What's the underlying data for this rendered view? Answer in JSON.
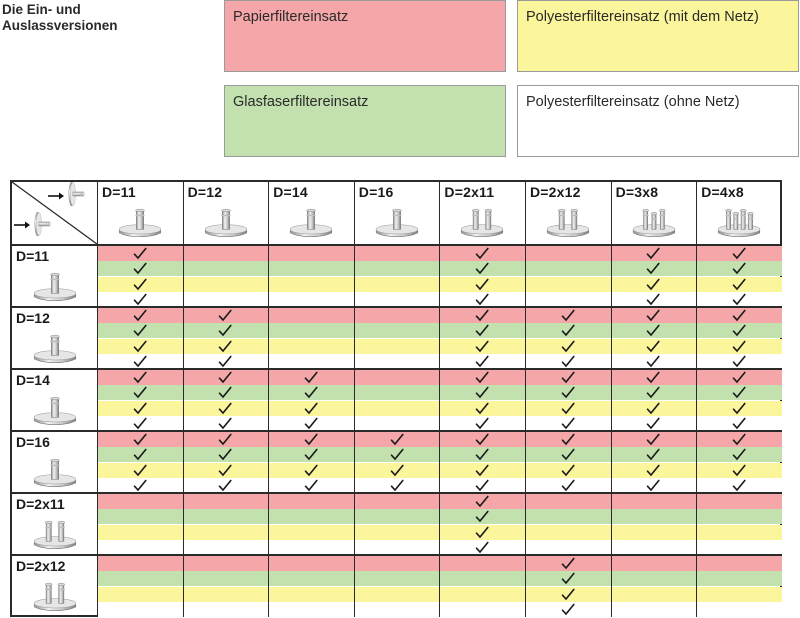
{
  "title_line1": "Die Ein- und",
  "title_line2": "Auslassversionen",
  "legend": {
    "paper": "Papierfiltereinsatz",
    "polyester_net": "Polyesterfiltereinsatz (mit dem Netz)",
    "glass": "Glasfaserfiltereinsatz",
    "polyester_nonet": "Polyesterfiltereinsatz (ohne Netz)"
  },
  "colors": {
    "paper": "#f4a6a8",
    "glass": "#c2e1ae",
    "polyester_net": "#fbf59c",
    "polyester_nonet": "#ffffff"
  },
  "columns": [
    "D=11",
    "D=12",
    "D=14",
    "D=16",
    "D=2x11",
    "D=2x12",
    "D=3x8",
    "D=4x8"
  ],
  "column_pins": [
    1,
    1,
    1,
    1,
    2,
    2,
    3,
    4
  ],
  "rows": [
    {
      "label": "D=11",
      "pins": 1,
      "checks": [
        [
          1,
          0,
          0,
          0,
          1,
          0,
          1,
          1
        ],
        [
          1,
          0,
          0,
          0,
          1,
          0,
          1,
          1
        ],
        [
          1,
          0,
          0,
          0,
          1,
          0,
          1,
          1
        ],
        [
          1,
          0,
          0,
          0,
          1,
          0,
          1,
          1
        ]
      ]
    },
    {
      "label": "D=12",
      "pins": 1,
      "checks": [
        [
          1,
          1,
          0,
          0,
          1,
          1,
          1,
          1
        ],
        [
          1,
          1,
          0,
          0,
          1,
          1,
          1,
          1
        ],
        [
          1,
          1,
          0,
          0,
          1,
          1,
          1,
          1
        ],
        [
          1,
          1,
          0,
          0,
          1,
          1,
          1,
          1
        ]
      ]
    },
    {
      "label": "D=14",
      "pins": 1,
      "checks": [
        [
          1,
          1,
          1,
          0,
          1,
          1,
          1,
          1
        ],
        [
          1,
          1,
          1,
          0,
          1,
          1,
          1,
          1
        ],
        [
          1,
          1,
          1,
          0,
          1,
          1,
          1,
          1
        ],
        [
          1,
          1,
          1,
          0,
          1,
          1,
          1,
          1
        ]
      ]
    },
    {
      "label": "D=16",
      "pins": 1,
      "checks": [
        [
          1,
          1,
          1,
          1,
          1,
          1,
          1,
          1
        ],
        [
          1,
          1,
          1,
          1,
          1,
          1,
          1,
          1
        ],
        [
          1,
          1,
          1,
          1,
          1,
          1,
          1,
          1
        ],
        [
          1,
          1,
          1,
          1,
          1,
          1,
          1,
          1
        ]
      ]
    },
    {
      "label": "D=2x11",
      "pins": 2,
      "checks": [
        [
          0,
          0,
          0,
          0,
          1,
          0,
          0,
          0
        ],
        [
          0,
          0,
          0,
          0,
          1,
          0,
          0,
          0
        ],
        [
          0,
          0,
          0,
          0,
          1,
          0,
          0,
          0
        ],
        [
          0,
          0,
          0,
          0,
          1,
          0,
          0,
          0
        ]
      ]
    },
    {
      "label": "D=2x12",
      "pins": 2,
      "checks": [
        [
          0,
          0,
          0,
          0,
          0,
          1,
          0,
          0
        ],
        [
          0,
          0,
          0,
          0,
          0,
          1,
          0,
          0
        ],
        [
          0,
          0,
          0,
          0,
          0,
          1,
          0,
          0
        ],
        [
          0,
          0,
          0,
          0,
          0,
          1,
          0,
          0
        ]
      ]
    }
  ],
  "icons": {
    "check": "check-icon",
    "fitting": "filter-fitting-icon",
    "inlet": "inlet-arrow-icon",
    "outlet": "outlet-arrow-icon"
  }
}
